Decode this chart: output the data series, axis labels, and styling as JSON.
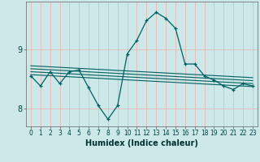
{
  "title": "",
  "xlabel": "Humidex (Indice chaleur)",
  "ylabel": "",
  "bg_color": "#cce8e8",
  "grid_color": "#e8b8b8",
  "line_color": "#006060",
  "x_ticks": [
    0,
    1,
    2,
    3,
    4,
    5,
    6,
    7,
    8,
    9,
    10,
    11,
    12,
    13,
    14,
    15,
    16,
    17,
    18,
    19,
    20,
    21,
    22,
    23
  ],
  "ylim": [
    7.7,
    9.8
  ],
  "xlim": [
    -0.5,
    23.5
  ],
  "yticks": [
    8,
    9
  ],
  "main_x": [
    0,
    1,
    2,
    3,
    4,
    5,
    6,
    7,
    8,
    9,
    10,
    11,
    12,
    13,
    14,
    15,
    16,
    17,
    18,
    19,
    20,
    21,
    22,
    23
  ],
  "main_y": [
    8.55,
    8.38,
    8.62,
    8.42,
    8.62,
    8.65,
    8.35,
    8.05,
    7.82,
    8.05,
    8.92,
    9.15,
    9.48,
    9.62,
    9.52,
    9.35,
    8.75,
    8.75,
    8.55,
    8.48,
    8.38,
    8.32,
    8.42,
    8.38
  ],
  "reg_lines": [
    {
      "x0": 0,
      "y0": 8.72,
      "x1": 23,
      "y1": 8.52
    },
    {
      "x0": 0,
      "y0": 8.67,
      "x1": 23,
      "y1": 8.47
    },
    {
      "x0": 0,
      "y0": 8.62,
      "x1": 23,
      "y1": 8.42
    },
    {
      "x0": 0,
      "y0": 8.57,
      "x1": 23,
      "y1": 8.37
    }
  ],
  "tick_fontsize": 5.5,
  "xlabel_fontsize": 7,
  "ylabel_fontsize": 7,
  "ytick_fontsize": 7
}
